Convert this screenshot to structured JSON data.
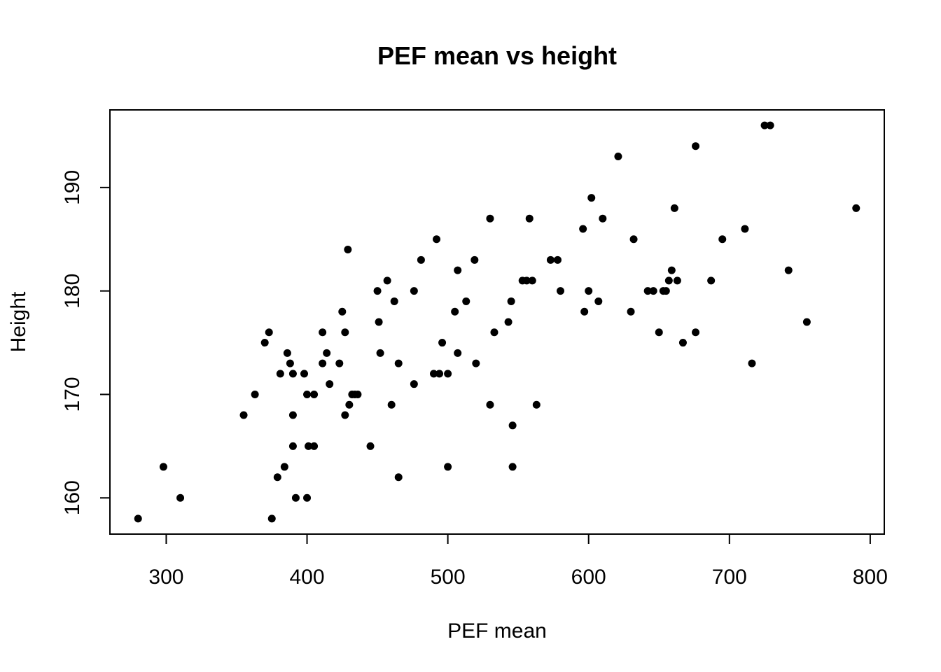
{
  "chart_data": {
    "type": "scatter",
    "title": "PEF mean vs height",
    "xlabel": "PEF mean",
    "ylabel": "Height",
    "xlim": [
      260,
      810
    ],
    "ylim": [
      156.5,
      197.5
    ],
    "xticks": [
      "300",
      "400",
      "500",
      "600",
      "700",
      "800"
    ],
    "yticks": [
      "160",
      "170",
      "180",
      "190"
    ],
    "grid": false,
    "legend": "none",
    "marker_color": "#000000",
    "points": [
      [
        280,
        158
      ],
      [
        298,
        163
      ],
      [
        310,
        160
      ],
      [
        355,
        168
      ],
      [
        363,
        170
      ],
      [
        370,
        175
      ],
      [
        373,
        176
      ],
      [
        375,
        158
      ],
      [
        379,
        162
      ],
      [
        381,
        172
      ],
      [
        384,
        163
      ],
      [
        386,
        174
      ],
      [
        388,
        173
      ],
      [
        390,
        172
      ],
      [
        390,
        168
      ],
      [
        390,
        165
      ],
      [
        392,
        160
      ],
      [
        398,
        172
      ],
      [
        400,
        170
      ],
      [
        400,
        160
      ],
      [
        401,
        165
      ],
      [
        405,
        170
      ],
      [
        405,
        165
      ],
      [
        411,
        176
      ],
      [
        411,
        173
      ],
      [
        414,
        174
      ],
      [
        416,
        171
      ],
      [
        423,
        173
      ],
      [
        425,
        178
      ],
      [
        427,
        176
      ],
      [
        427,
        168
      ],
      [
        429,
        184
      ],
      [
        430,
        169
      ],
      [
        432,
        170
      ],
      [
        434,
        170
      ],
      [
        436,
        170
      ],
      [
        445,
        165
      ],
      [
        450,
        180
      ],
      [
        451,
        177
      ],
      [
        452,
        174
      ],
      [
        457,
        181
      ],
      [
        460,
        169
      ],
      [
        462,
        179
      ],
      [
        465,
        173
      ],
      [
        465,
        162
      ],
      [
        476,
        180
      ],
      [
        476,
        171
      ],
      [
        481,
        183
      ],
      [
        490,
        172
      ],
      [
        492,
        185
      ],
      [
        494,
        172
      ],
      [
        496,
        175
      ],
      [
        500,
        172
      ],
      [
        500,
        163
      ],
      [
        505,
        178
      ],
      [
        507,
        182
      ],
      [
        507,
        174
      ],
      [
        513,
        179
      ],
      [
        519,
        183
      ],
      [
        520,
        173
      ],
      [
        530,
        187
      ],
      [
        530,
        169
      ],
      [
        533,
        176
      ],
      [
        543,
        177
      ],
      [
        545,
        179
      ],
      [
        546,
        167
      ],
      [
        546,
        163
      ],
      [
        553,
        181
      ],
      [
        556,
        181
      ],
      [
        558,
        187
      ],
      [
        560,
        181
      ],
      [
        563,
        169
      ],
      [
        573,
        183
      ],
      [
        578,
        183
      ],
      [
        580,
        180
      ],
      [
        596,
        186
      ],
      [
        597,
        178
      ],
      [
        600,
        180
      ],
      [
        602,
        189
      ],
      [
        607,
        179
      ],
      [
        610,
        187
      ],
      [
        621,
        193
      ],
      [
        630,
        178
      ],
      [
        632,
        185
      ],
      [
        642,
        180
      ],
      [
        646,
        180
      ],
      [
        650,
        176
      ],
      [
        653,
        180
      ],
      [
        655,
        180
      ],
      [
        657,
        181
      ],
      [
        659,
        182
      ],
      [
        661,
        188
      ],
      [
        663,
        181
      ],
      [
        667,
        175
      ],
      [
        676,
        194
      ],
      [
        676,
        176
      ],
      [
        687,
        181
      ],
      [
        695,
        185
      ],
      [
        711,
        186
      ],
      [
        716,
        173
      ],
      [
        725,
        196
      ],
      [
        729,
        196
      ],
      [
        742,
        182
      ],
      [
        755,
        177
      ],
      [
        790,
        188
      ]
    ]
  }
}
